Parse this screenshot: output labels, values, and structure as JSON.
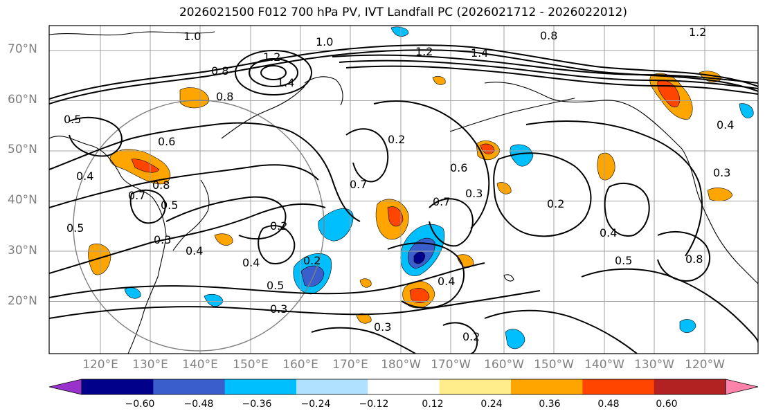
{
  "title": "2026021500 F012 700 hPa PV, IVT Landfall PC (2026021712 - 2026022012)",
  "lat_labels": [
    "70°N",
    "60°N",
    "50°N",
    "40°N",
    "30°N",
    "20°N"
  ],
  "lon_labels": [
    "120°E",
    "130°E",
    "140°E",
    "150°E",
    "160°E",
    "170°E",
    "180°W",
    "170°W",
    "160°W",
    "150°W",
    "140°W",
    "130°W",
    "120°W"
  ],
  "colorbar": {
    "colors": [
      "#9932cc",
      "#00008b",
      "#3a5fcd",
      "#00bfff",
      "#b0e2ff",
      "#ffffff",
      "#ffec8b",
      "#ffa500",
      "#ff4500",
      "#b22222",
      "#ff82ab"
    ],
    "tick_labels": [
      "−0.60",
      "−0.48",
      "−0.36",
      "−0.24",
      "−0.12",
      "0.12",
      "0.24",
      "0.36",
      "0.48",
      "0.60"
    ]
  },
  "contour_labels": [
    "1.0",
    "1.0",
    "0.8",
    "1.2",
    "1.4",
    "0.8",
    "1.2",
    "1.4",
    "0.8",
    "0.6",
    "0.5",
    "0.4",
    "0.7",
    "0.8",
    "0.5",
    "0.5",
    "0.3",
    "0.4",
    "0.2",
    "0.4",
    "0.5",
    "0.3",
    "0.2",
    "0.2",
    "0.6",
    "0.7",
    "0.3",
    "0.2",
    "0.7",
    "0.4",
    "0.3",
    "0.2",
    "0.4",
    "0.5",
    "0.8",
    "0.4",
    "0.3",
    "1.2"
  ]
}
